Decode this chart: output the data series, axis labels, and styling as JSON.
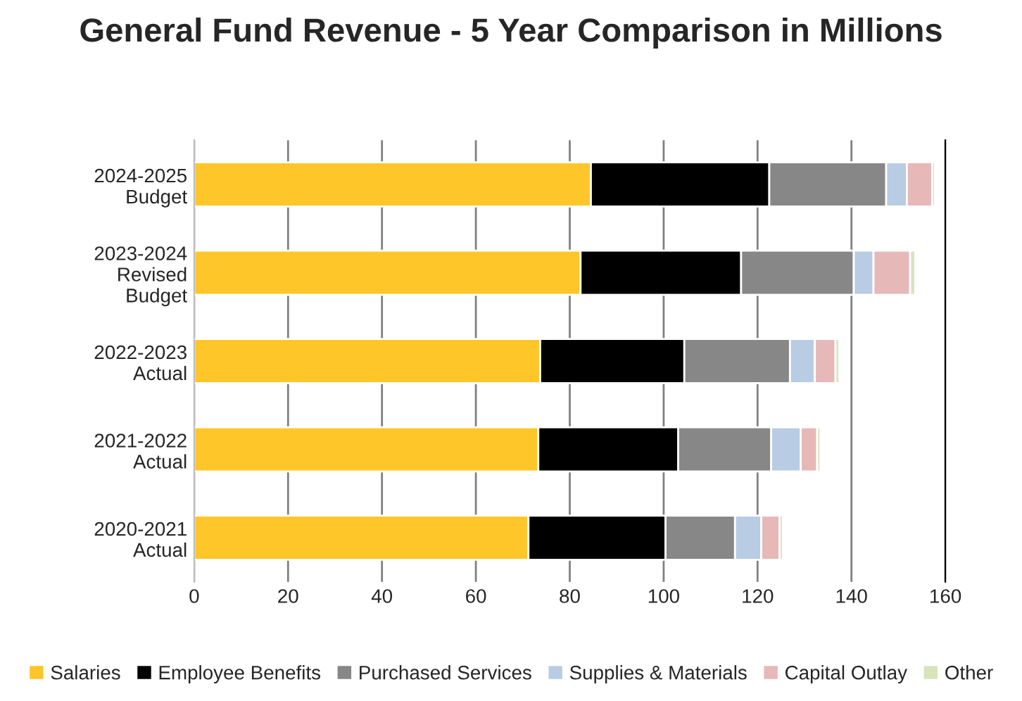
{
  "chart_data": {
    "type": "bar",
    "orientation": "horizontal",
    "stacked": true,
    "title": "General Fund Revenue - 5 Year Comparison in Millions",
    "categories": [
      "2024-2025\nBudget",
      "2023-2024\nRevised\nBudget",
      "2022-2023\nActual",
      "2021-2022\nActual",
      "2020-2021\nActual"
    ],
    "series": [
      {
        "name": "Salaries",
        "color": "#ffc629",
        "values": [
          84.5,
          82.3,
          73.7,
          73.3,
          71.2
        ]
      },
      {
        "name": "Employee Benefits",
        "color": "#000000",
        "values": [
          38.0,
          34.2,
          30.7,
          29.8,
          29.2
        ]
      },
      {
        "name": "Purchased Services",
        "color": "#878787",
        "values": [
          24.9,
          24.0,
          22.5,
          19.8,
          14.8
        ]
      },
      {
        "name": "Supplies & Materials",
        "color": "#b8cce4",
        "values": [
          4.4,
          4.2,
          5.3,
          6.3,
          5.6
        ]
      },
      {
        "name": "Capital Outlay",
        "color": "#e6b8b7",
        "values": [
          5.4,
          7.8,
          4.4,
          3.5,
          3.9
        ]
      },
      {
        "name": "Other",
        "color": "#d8e4bc",
        "values": [
          0.6,
          1.1,
          0.8,
          0.7,
          0.7
        ]
      }
    ],
    "xlim": [
      0,
      160
    ],
    "xticks": [
      0,
      20,
      40,
      60,
      80,
      100,
      120,
      140,
      160
    ],
    "grid": "x",
    "legend": "bottom"
  }
}
